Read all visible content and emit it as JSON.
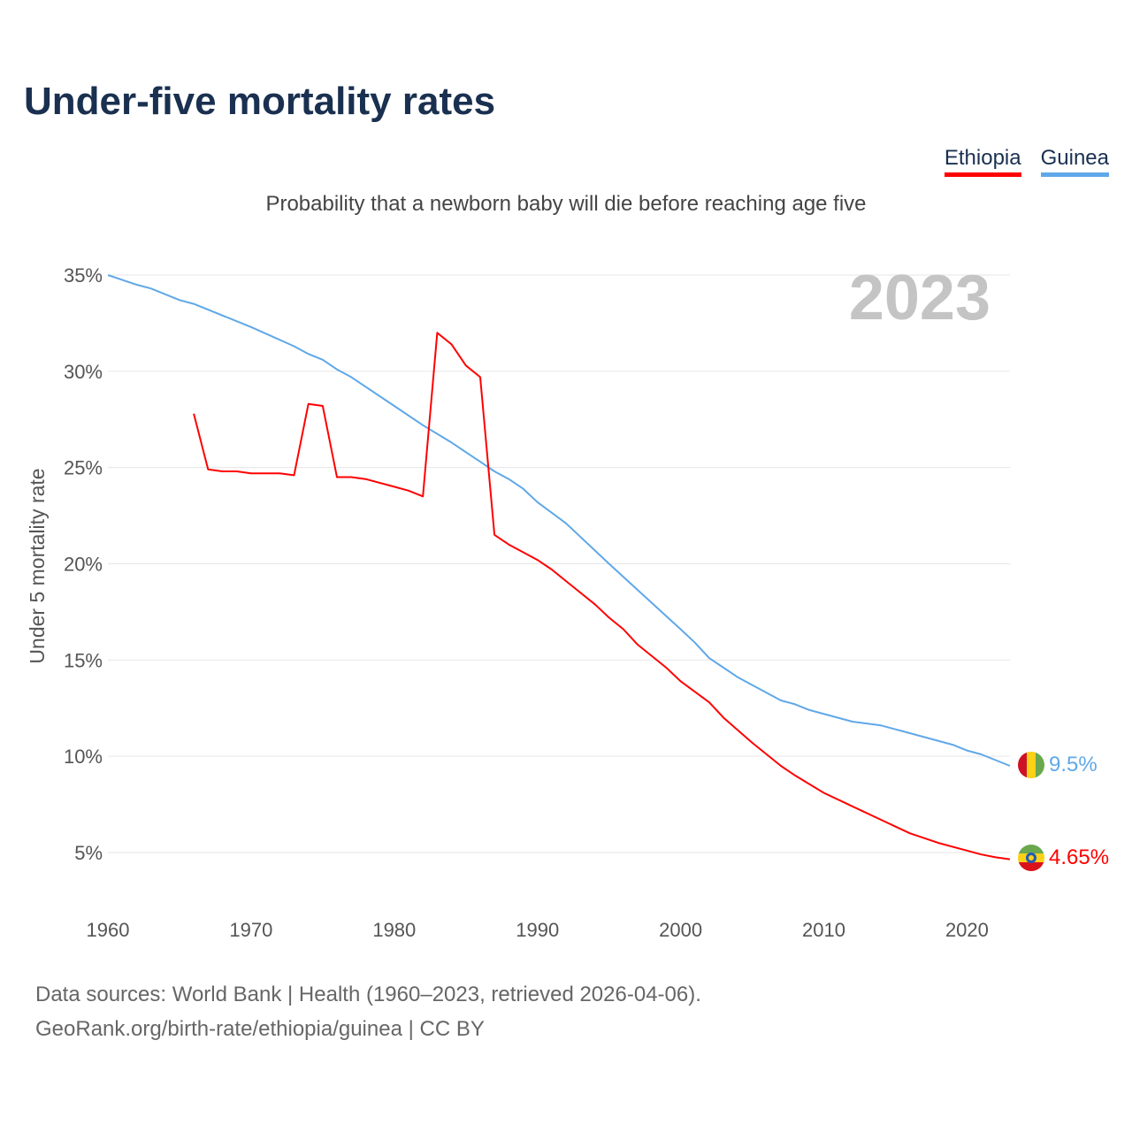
{
  "title": "Under-five mortality rates",
  "subtitle": "Probability that a newborn baby will die before reaching age five",
  "legend": [
    {
      "label": "Ethiopia",
      "color": "#ff0000"
    },
    {
      "label": "Guinea",
      "color": "#5fa8e8"
    }
  ],
  "sources": {
    "line1": "Data sources: World Bank | Health (1960–2023, retrieved 2026-04-06).",
    "line2": "GeoRank.org/birth-rate/ethiopia/guinea | CC BY"
  },
  "chart_data": {
    "type": "line",
    "title": "Under-five mortality rates",
    "year_label": "2023",
    "xlabel": "",
    "ylabel": "Under 5 mortality rate",
    "xlim": [
      1960,
      2023
    ],
    "ylim": [
      5,
      35
    ],
    "x_ticks": [
      1960,
      1970,
      1980,
      1990,
      2000,
      2010,
      2020
    ],
    "y_ticks": [
      "5%",
      "10%",
      "15%",
      "20%",
      "25%",
      "30%",
      "35%"
    ],
    "y_tick_values": [
      5,
      10,
      15,
      20,
      25,
      30,
      35
    ],
    "grid": true,
    "legend_position": "top-right",
    "series": [
      {
        "name": "Ethiopia",
        "color": "#ff0000",
        "end_label": "4.65%",
        "x": [
          1966,
          1967,
          1968,
          1969,
          1970,
          1972,
          1973,
          1974,
          1975,
          1976,
          1977,
          1978,
          1980,
          1981,
          1982,
          1983,
          1984,
          1985,
          1986,
          1987,
          1988,
          1990,
          1991,
          1992,
          1994,
          1995,
          1996,
          1997,
          1999,
          2000,
          2002,
          2003,
          2005,
          2007,
          2008,
          2010,
          2012,
          2014,
          2016,
          2018,
          2020,
          2021,
          2022,
          2023
        ],
        "values": [
          27.8,
          24.9,
          24.8,
          24.8,
          24.7,
          24.7,
          24.6,
          28.3,
          28.2,
          24.5,
          24.5,
          24.4,
          24.0,
          23.8,
          23.5,
          32.0,
          31.4,
          30.3,
          29.7,
          21.5,
          21.0,
          20.2,
          19.7,
          19.1,
          17.9,
          17.2,
          16.6,
          15.8,
          14.6,
          13.9,
          12.8,
          12.0,
          10.7,
          9.5,
          9.0,
          8.1,
          7.4,
          6.7,
          6.0,
          5.5,
          5.1,
          4.9,
          4.75,
          4.65
        ]
      },
      {
        "name": "Guinea",
        "color": "#5fa8e8",
        "end_label": "9.5%",
        "x": [
          1960,
          1962,
          1963,
          1965,
          1966,
          1970,
          1973,
          1974,
          1975,
          1976,
          1977,
          1980,
          1982,
          1984,
          1985,
          1986,
          1987,
          1988,
          1989,
          1990,
          1992,
          1995,
          2000,
          2001,
          2002,
          2003,
          2004,
          2005,
          2007,
          2008,
          2009,
          2012,
          2014,
          2016,
          2019,
          2020,
          2021,
          2022,
          2023
        ],
        "values": [
          35.0,
          34.5,
          34.3,
          33.7,
          33.5,
          32.3,
          31.3,
          30.9,
          30.6,
          30.1,
          29.7,
          28.2,
          27.2,
          26.3,
          25.8,
          25.3,
          24.8,
          24.4,
          23.9,
          23.2,
          22.1,
          20.0,
          16.6,
          15.9,
          15.1,
          14.6,
          14.1,
          13.7,
          12.9,
          12.7,
          12.4,
          11.8,
          11.6,
          11.2,
          10.6,
          10.3,
          10.1,
          9.8,
          9.5
        ]
      }
    ]
  }
}
